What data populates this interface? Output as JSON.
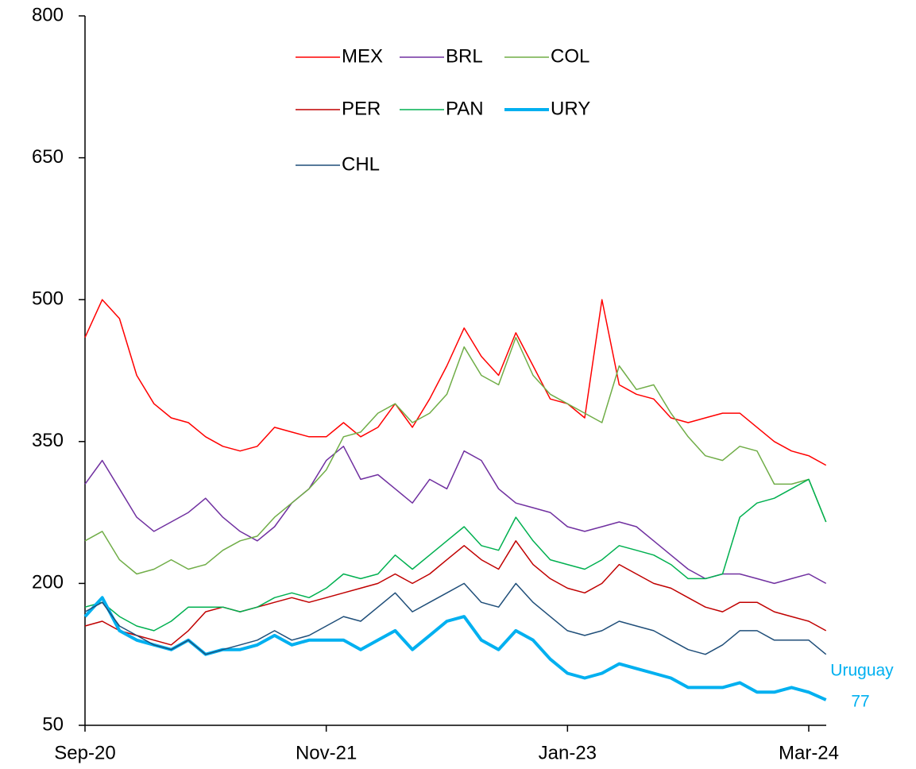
{
  "chart_data": {
    "type": "line",
    "x": [
      "Sep-20",
      null,
      null,
      null,
      null,
      null,
      null,
      null,
      null,
      null,
      null,
      null,
      null,
      null,
      "Nov-21",
      null,
      null,
      null,
      null,
      null,
      null,
      null,
      null,
      null,
      null,
      null,
      null,
      null,
      "Jan-23",
      null,
      null,
      null,
      null,
      null,
      null,
      null,
      null,
      null,
      null,
      null,
      null,
      null,
      "Mar-24",
      null
    ],
    "ylim": [
      50,
      800
    ],
    "yticks": [
      50,
      200,
      350,
      500,
      650,
      800
    ],
    "legend": "top-center",
    "annotations": [
      "Uruguay",
      "77"
    ],
    "series": [
      {
        "name": "MEX",
        "color": "#ff0000",
        "values": [
          460,
          500,
          480,
          420,
          390,
          375,
          370,
          355,
          345,
          340,
          345,
          365,
          360,
          355,
          355,
          370,
          355,
          365,
          390,
          365,
          395,
          430,
          470,
          440,
          420,
          465,
          430,
          395,
          390,
          375,
          500,
          410,
          400,
          395,
          375,
          370,
          375,
          380,
          380,
          365,
          350,
          340,
          335,
          325
        ]
      },
      {
        "name": "BRL",
        "color": "#7030a0",
        "values": [
          305,
          330,
          300,
          270,
          255,
          265,
          275,
          290,
          270,
          255,
          245,
          260,
          285,
          300,
          330,
          345,
          310,
          315,
          300,
          285,
          310,
          300,
          340,
          330,
          300,
          285,
          280,
          275,
          260,
          255,
          260,
          265,
          260,
          245,
          230,
          215,
          205,
          210,
          210,
          205,
          200,
          205,
          210,
          200
        ]
      },
      {
        "name": "COL",
        "color": "#70ad47",
        "values": [
          245,
          255,
          225,
          210,
          215,
          225,
          215,
          220,
          235,
          245,
          250,
          270,
          285,
          300,
          320,
          355,
          360,
          380,
          390,
          370,
          380,
          400,
          450,
          420,
          410,
          460,
          420,
          400,
          390,
          380,
          370,
          430,
          405,
          410,
          380,
          355,
          335,
          330,
          345,
          340,
          305,
          305,
          310,
          265
        ]
      },
      {
        "name": "PER",
        "color": "#c00000",
        "values": [
          155,
          160,
          150,
          145,
          140,
          135,
          150,
          170,
          175,
          170,
          175,
          180,
          185,
          180,
          185,
          190,
          195,
          200,
          210,
          200,
          210,
          225,
          240,
          225,
          215,
          245,
          220,
          205,
          195,
          190,
          200,
          220,
          210,
          200,
          195,
          185,
          175,
          170,
          180,
          180,
          170,
          165,
          160,
          150
        ]
      },
      {
        "name": "PAN",
        "color": "#00b050",
        "values": [
          175,
          180,
          165,
          155,
          150,
          160,
          175,
          175,
          175,
          170,
          175,
          185,
          190,
          185,
          195,
          210,
          205,
          210,
          230,
          215,
          230,
          245,
          260,
          240,
          235,
          270,
          245,
          225,
          220,
          215,
          225,
          240,
          235,
          230,
          220,
          205,
          205,
          210,
          270,
          285,
          290,
          300,
          310,
          265
        ]
      },
      {
        "name": "URY",
        "color": "#00b0f0",
        "width": 4,
        "values": [
          165,
          185,
          150,
          140,
          135,
          130,
          140,
          125,
          130,
          130,
          135,
          145,
          135,
          140,
          140,
          140,
          130,
          140,
          150,
          130,
          145,
          160,
          165,
          140,
          130,
          150,
          140,
          120,
          105,
          100,
          105,
          115,
          110,
          105,
          100,
          90,
          90,
          90,
          95,
          85,
          85,
          90,
          85,
          77
        ]
      },
      {
        "name": "CHL",
        "color": "#1f4e79",
        "values": [
          170,
          180,
          155,
          145,
          135,
          130,
          140,
          125,
          130,
          135,
          140,
          150,
          140,
          145,
          155,
          165,
          160,
          175,
          190,
          170,
          180,
          190,
          200,
          180,
          175,
          200,
          180,
          165,
          150,
          145,
          150,
          160,
          155,
          150,
          140,
          130,
          125,
          135,
          150,
          150,
          140,
          140,
          140,
          125
        ]
      }
    ]
  }
}
